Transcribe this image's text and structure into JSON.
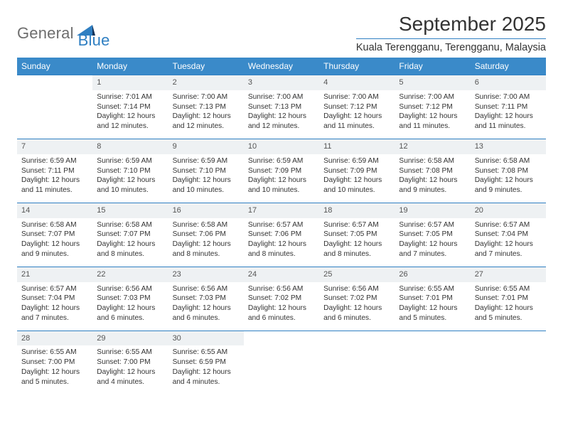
{
  "brand": {
    "word1": "General",
    "word2": "Blue"
  },
  "title": "September 2025",
  "subtitle": "Kuala Terengganu, Terengganu, Malaysia",
  "colors": {
    "header_bg": "#3a8ac9",
    "rule": "#2f7fc2",
    "daynum_bg": "#eef1f3",
    "text": "#333333",
    "logo_gray": "#6e6e6e",
    "logo_blue": "#2f7fc2",
    "page_bg": "#ffffff"
  },
  "weekdays": [
    "Sunday",
    "Monday",
    "Tuesday",
    "Wednesday",
    "Thursday",
    "Friday",
    "Saturday"
  ],
  "weeks": [
    [
      null,
      {
        "n": "1",
        "sunrise": "7:01 AM",
        "sunset": "7:14 PM",
        "daylight": "12 hours and 12 minutes."
      },
      {
        "n": "2",
        "sunrise": "7:00 AM",
        "sunset": "7:13 PM",
        "daylight": "12 hours and 12 minutes."
      },
      {
        "n": "3",
        "sunrise": "7:00 AM",
        "sunset": "7:13 PM",
        "daylight": "12 hours and 12 minutes."
      },
      {
        "n": "4",
        "sunrise": "7:00 AM",
        "sunset": "7:12 PM",
        "daylight": "12 hours and 11 minutes."
      },
      {
        "n": "5",
        "sunrise": "7:00 AM",
        "sunset": "7:12 PM",
        "daylight": "12 hours and 11 minutes."
      },
      {
        "n": "6",
        "sunrise": "7:00 AM",
        "sunset": "7:11 PM",
        "daylight": "12 hours and 11 minutes."
      }
    ],
    [
      {
        "n": "7",
        "sunrise": "6:59 AM",
        "sunset": "7:11 PM",
        "daylight": "12 hours and 11 minutes."
      },
      {
        "n": "8",
        "sunrise": "6:59 AM",
        "sunset": "7:10 PM",
        "daylight": "12 hours and 10 minutes."
      },
      {
        "n": "9",
        "sunrise": "6:59 AM",
        "sunset": "7:10 PM",
        "daylight": "12 hours and 10 minutes."
      },
      {
        "n": "10",
        "sunrise": "6:59 AM",
        "sunset": "7:09 PM",
        "daylight": "12 hours and 10 minutes."
      },
      {
        "n": "11",
        "sunrise": "6:59 AM",
        "sunset": "7:09 PM",
        "daylight": "12 hours and 10 minutes."
      },
      {
        "n": "12",
        "sunrise": "6:58 AM",
        "sunset": "7:08 PM",
        "daylight": "12 hours and 9 minutes."
      },
      {
        "n": "13",
        "sunrise": "6:58 AM",
        "sunset": "7:08 PM",
        "daylight": "12 hours and 9 minutes."
      }
    ],
    [
      {
        "n": "14",
        "sunrise": "6:58 AM",
        "sunset": "7:07 PM",
        "daylight": "12 hours and 9 minutes."
      },
      {
        "n": "15",
        "sunrise": "6:58 AM",
        "sunset": "7:07 PM",
        "daylight": "12 hours and 8 minutes."
      },
      {
        "n": "16",
        "sunrise": "6:58 AM",
        "sunset": "7:06 PM",
        "daylight": "12 hours and 8 minutes."
      },
      {
        "n": "17",
        "sunrise": "6:57 AM",
        "sunset": "7:06 PM",
        "daylight": "12 hours and 8 minutes."
      },
      {
        "n": "18",
        "sunrise": "6:57 AM",
        "sunset": "7:05 PM",
        "daylight": "12 hours and 8 minutes."
      },
      {
        "n": "19",
        "sunrise": "6:57 AM",
        "sunset": "7:05 PM",
        "daylight": "12 hours and 7 minutes."
      },
      {
        "n": "20",
        "sunrise": "6:57 AM",
        "sunset": "7:04 PM",
        "daylight": "12 hours and 7 minutes."
      }
    ],
    [
      {
        "n": "21",
        "sunrise": "6:57 AM",
        "sunset": "7:04 PM",
        "daylight": "12 hours and 7 minutes."
      },
      {
        "n": "22",
        "sunrise": "6:56 AM",
        "sunset": "7:03 PM",
        "daylight": "12 hours and 6 minutes."
      },
      {
        "n": "23",
        "sunrise": "6:56 AM",
        "sunset": "7:03 PM",
        "daylight": "12 hours and 6 minutes."
      },
      {
        "n": "24",
        "sunrise": "6:56 AM",
        "sunset": "7:02 PM",
        "daylight": "12 hours and 6 minutes."
      },
      {
        "n": "25",
        "sunrise": "6:56 AM",
        "sunset": "7:02 PM",
        "daylight": "12 hours and 6 minutes."
      },
      {
        "n": "26",
        "sunrise": "6:55 AM",
        "sunset": "7:01 PM",
        "daylight": "12 hours and 5 minutes."
      },
      {
        "n": "27",
        "sunrise": "6:55 AM",
        "sunset": "7:01 PM",
        "daylight": "12 hours and 5 minutes."
      }
    ],
    [
      {
        "n": "28",
        "sunrise": "6:55 AM",
        "sunset": "7:00 PM",
        "daylight": "12 hours and 5 minutes."
      },
      {
        "n": "29",
        "sunrise": "6:55 AM",
        "sunset": "7:00 PM",
        "daylight": "12 hours and 4 minutes."
      },
      {
        "n": "30",
        "sunrise": "6:55 AM",
        "sunset": "6:59 PM",
        "daylight": "12 hours and 4 minutes."
      },
      null,
      null,
      null,
      null
    ]
  ],
  "labels": {
    "sunrise": "Sunrise:",
    "sunset": "Sunset:",
    "daylight": "Daylight:"
  }
}
